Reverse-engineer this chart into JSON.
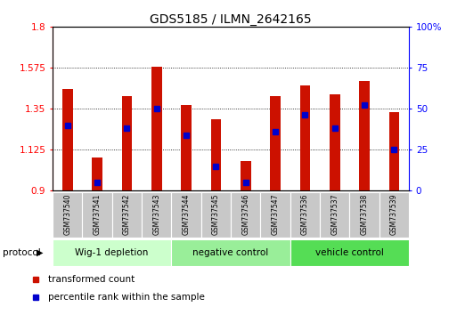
{
  "title": "GDS5185 / ILMN_2642165",
  "samples": [
    "GSM737540",
    "GSM737541",
    "GSM737542",
    "GSM737543",
    "GSM737544",
    "GSM737545",
    "GSM737546",
    "GSM737547",
    "GSM737536",
    "GSM737537",
    "GSM737538",
    "GSM737539"
  ],
  "transformed_count": [
    1.46,
    1.08,
    1.42,
    1.58,
    1.37,
    1.29,
    1.06,
    1.42,
    1.48,
    1.43,
    1.5,
    1.33
  ],
  "percentile_rank": [
    40,
    5,
    38,
    50,
    34,
    15,
    5,
    36,
    46,
    38,
    52,
    25
  ],
  "groups": [
    "Wig-1 depletion",
    "Wig-1 depletion",
    "Wig-1 depletion",
    "Wig-1 depletion",
    "negative control",
    "negative control",
    "negative control",
    "negative control",
    "vehicle control",
    "vehicle control",
    "vehicle control",
    "vehicle control"
  ],
  "group_colors": {
    "Wig-1 depletion": "#ccffcc",
    "negative control": "#99ee99",
    "vehicle control": "#55dd55"
  },
  "ylim_left": [
    0.9,
    1.8
  ],
  "ylim_right": [
    0,
    100
  ],
  "yticks_left": [
    0.9,
    1.125,
    1.35,
    1.575,
    1.8
  ],
  "yticks_right": [
    0,
    25,
    50,
    75,
    100
  ],
  "bar_color": "#cc1100",
  "blue_color": "#0000cc",
  "bar_width": 0.35,
  "baseline": 0.9
}
